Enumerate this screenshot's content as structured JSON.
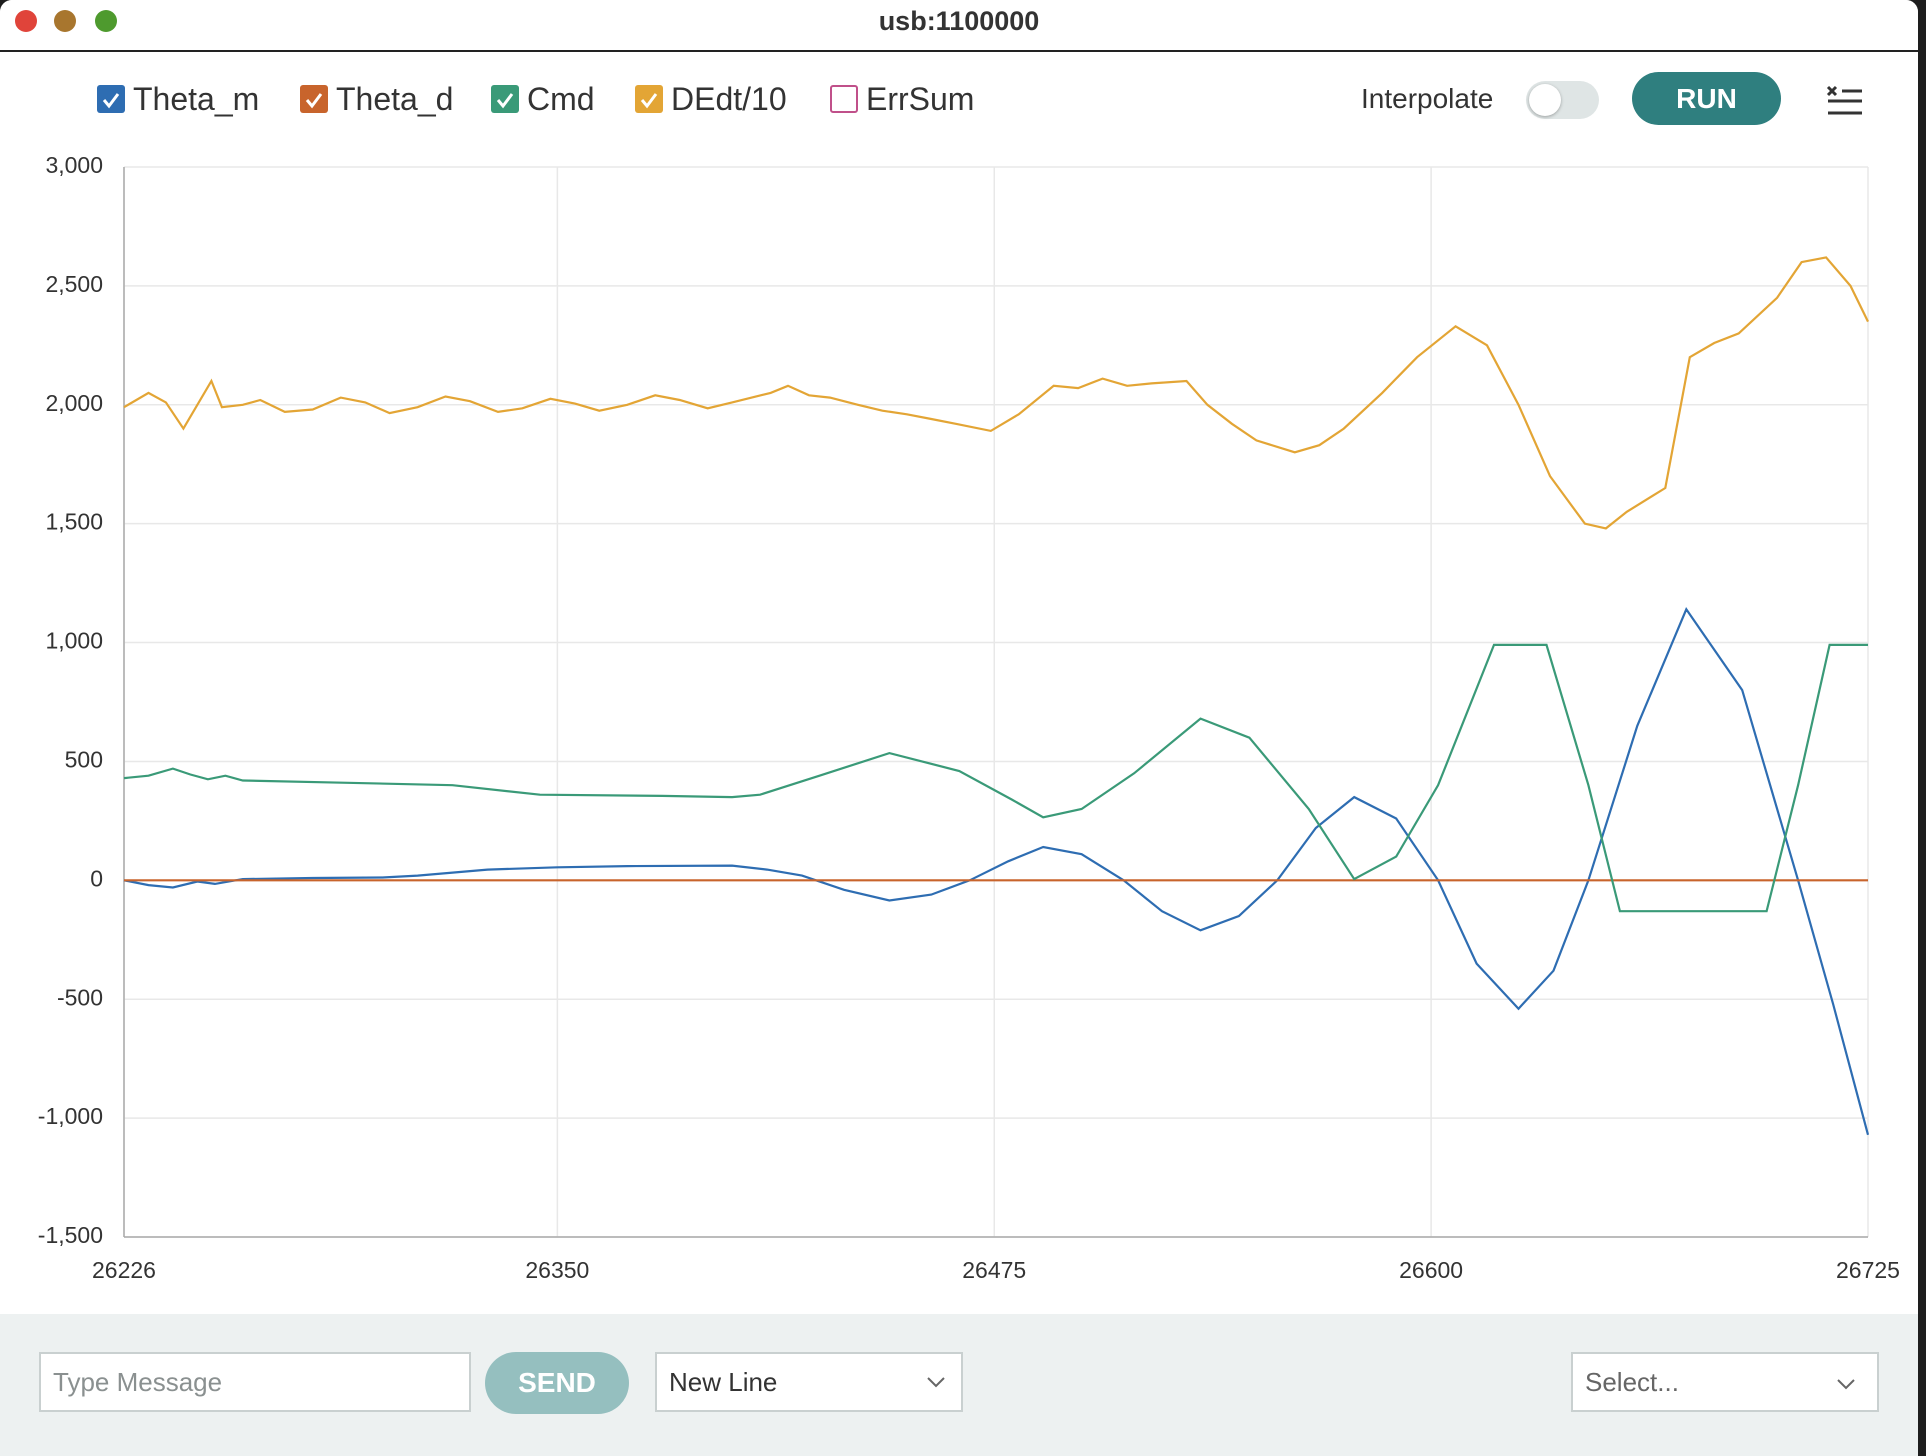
{
  "window": {
    "title": "usb:1100000"
  },
  "toolbar": {
    "interpolate_label": "Interpolate",
    "interpolate_on": false,
    "run_label": "RUN"
  },
  "footer": {
    "message_placeholder": "Type Message",
    "send_label": "SEND",
    "line_ending": "New Line",
    "baud_placeholder": "Select..."
  },
  "chart_data": {
    "type": "line",
    "xlim": [
      26226,
      26725
    ],
    "xticks": [
      26226,
      26350,
      26475,
      26600,
      26725
    ],
    "ylim": [
      -1500,
      3000
    ],
    "yticks": [
      {
        "value": -1500,
        "label": "-1,500"
      },
      {
        "value": -1000,
        "label": "-1,000"
      },
      -500,
      0,
      500,
      {
        "value": 1000,
        "label": "1,000"
      },
      {
        "value": 1500,
        "label": "1,500"
      },
      {
        "value": 2000,
        "label": "2,000"
      },
      {
        "value": 2500,
        "label": "2,500"
      },
      {
        "value": 3000,
        "label": "3,000"
      }
    ],
    "grid": true,
    "series": [
      {
        "name": "Theta_m",
        "color": "#2e6db2",
        "x": [
          26226,
          26233,
          26240,
          26247,
          26252,
          26260,
          26280,
          26300,
          26310,
          26330,
          26350,
          26370,
          26400,
          26410,
          26420,
          26432,
          26445,
          26457,
          26468,
          26479,
          26489,
          26500,
          26512,
          26523,
          26534,
          26545,
          26556,
          26567,
          26578,
          26590,
          26602,
          26613,
          26625,
          26635,
          26645,
          26659,
          26673,
          26689,
          26705,
          26715,
          26725
        ],
        "values": [
          0,
          -20,
          -30,
          -5,
          -15,
          5,
          10,
          12,
          20,
          45,
          55,
          60,
          62,
          45,
          20,
          -40,
          -85,
          -60,
          0,
          80,
          140,
          110,
          0,
          -130,
          -210,
          -150,
          0,
          220,
          350,
          260,
          0,
          -350,
          -540,
          -380,
          0,
          650,
          1140,
          800,
          0,
          -520,
          -1070
        ]
      },
      {
        "name": "Theta_d",
        "color": "#c8642c",
        "x": [
          26226,
          26725
        ],
        "values": [
          0,
          0
        ]
      },
      {
        "name": "Cmd",
        "color": "#3a9a78",
        "x": [
          26226,
          26233,
          26240,
          26245,
          26250,
          26255,
          26260,
          26290,
          26320,
          26345,
          26380,
          26400,
          26408,
          26425,
          26445,
          26465,
          26480,
          26489,
          26500,
          26515,
          26534,
          26548,
          26565,
          26578,
          26590,
          26602,
          26618,
          26633,
          26645,
          26654,
          26696,
          26705,
          26714,
          26725
        ],
        "values": [
          430,
          440,
          470,
          445,
          425,
          440,
          420,
          410,
          400,
          360,
          355,
          350,
          360,
          440,
          535,
          460,
          340,
          265,
          300,
          450,
          680,
          600,
          300,
          5,
          100,
          400,
          990,
          990,
          400,
          -130,
          -130,
          400,
          990,
          990
        ]
      },
      {
        "name": "DEdt/10",
        "color": "#e3a535",
        "x": [
          26226,
          26233,
          26238,
          26243,
          26251,
          26254,
          26260,
          26265,
          26272,
          26280,
          26288,
          26295,
          26302,
          26310,
          26318,
          26325,
          26333,
          26340,
          26348,
          26355,
          26362,
          26370,
          26378,
          26385,
          26393,
          26400,
          26411,
          26416,
          26422,
          26428,
          26436,
          26443,
          26450,
          26457,
          26464,
          26474,
          26482,
          26492,
          26499,
          26506,
          26513,
          26520,
          26530,
          26536,
          26543,
          26550,
          26561,
          26568,
          26575,
          26586,
          26596,
          26607,
          26616,
          26625,
          26634,
          26644,
          26650,
          26656,
          26667,
          26674,
          26681,
          26688,
          26699,
          26706,
          26713,
          26720,
          26725
        ],
        "values": [
          1990,
          2050,
          2010,
          1900,
          2100,
          1990,
          2000,
          2020,
          1970,
          1980,
          2030,
          2010,
          1965,
          1990,
          2035,
          2015,
          1970,
          1985,
          2025,
          2005,
          1975,
          2000,
          2040,
          2020,
          1985,
          2010,
          2050,
          2080,
          2040,
          2030,
          2000,
          1975,
          1960,
          1940,
          1920,
          1890,
          1960,
          2080,
          2070,
          2110,
          2080,
          2090,
          2100,
          2000,
          1920,
          1850,
          1800,
          1830,
          1900,
          2050,
          2200,
          2330,
          2250,
          2000,
          1700,
          1500,
          1480,
          1550,
          1650,
          2200,
          2260,
          2300,
          2450,
          2600,
          2620,
          2500,
          2350
        ]
      }
    ],
    "unchecked_series": [
      {
        "name": "ErrSum",
        "color": "#c0508a"
      }
    ]
  }
}
